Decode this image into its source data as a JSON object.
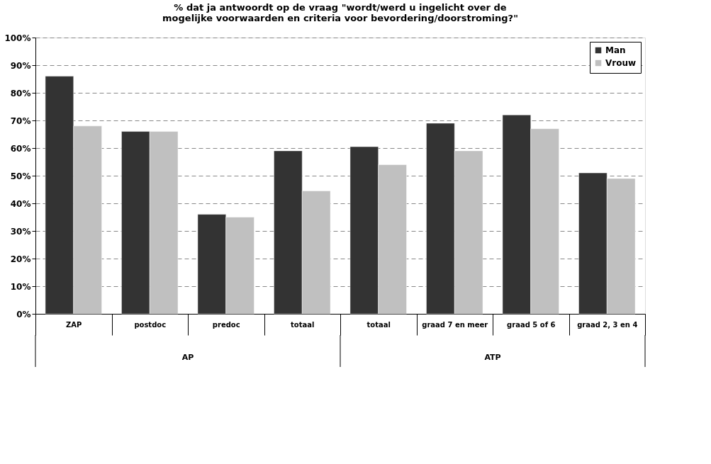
{
  "chart_data": {
    "type": "bar",
    "title": "% dat ja antwoordt op de vraag \"wordt/werd u ingelicht over de mogelijke voorwaarden en criteria voor bevordering/doorstroming?\"",
    "categories": [
      "ZAP",
      "postdoc",
      "predoc",
      "totaal",
      "totaal",
      "graad 7 en meer",
      "graad 5 of 6",
      "graad 2, 3 en 4"
    ],
    "series": [
      {
        "name": "Man",
        "color": "#333333",
        "values": [
          86,
          66,
          36,
          59,
          60.5,
          69,
          72,
          51
        ]
      },
      {
        "name": "Vrouw",
        "color": "#c0c0c0",
        "values": [
          68,
          66,
          35,
          44.5,
          54,
          59,
          67,
          49
        ]
      }
    ],
    "annotations": [
      "AP",
      "ATP"
    ],
    "ylim": [
      0,
      100
    ],
    "yticks": [
      {
        "value": 0,
        "label": "0%"
      },
      {
        "value": 10,
        "label": "10%"
      },
      {
        "value": 20,
        "label": "20%"
      },
      {
        "value": 30,
        "label": "30%"
      },
      {
        "value": 40,
        "label": "40%"
      },
      {
        "value": 50,
        "label": "50%"
      },
      {
        "value": 60,
        "label": "60%"
      },
      {
        "value": 70,
        "label": "70%"
      },
      {
        "value": 80,
        "label": "80%"
      },
      {
        "value": 90,
        "label": "90%"
      },
      {
        "value": 100,
        "label": "100%"
      }
    ],
    "grid": "y",
    "legend": "top right"
  }
}
